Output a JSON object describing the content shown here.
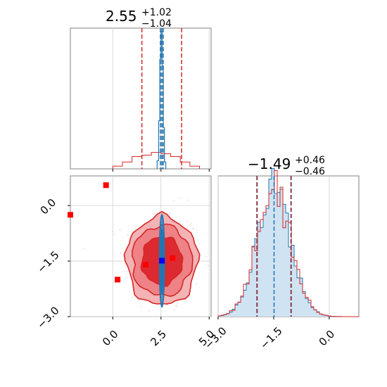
{
  "chart_data": [
    {
      "type": "histogram",
      "panel": "top-left",
      "title": {
        "main": "2.55",
        "sup": "+1.02",
        "sub": "−1.04"
      },
      "xlim": [
        -2.2,
        5.1
      ],
      "xticks": [
        0.0,
        2.5,
        5.0
      ],
      "grid": true,
      "narrow_series": {
        "name": "",
        "color": "#1f77b4",
        "bins": [
          [
            2.3,
            2.38,
            0.06
          ],
          [
            2.38,
            2.44,
            0.35
          ],
          [
            2.44,
            2.5,
            0.8
          ],
          [
            2.5,
            2.56,
            1.0
          ],
          [
            2.56,
            2.62,
            0.75
          ],
          [
            2.62,
            2.68,
            0.3
          ],
          [
            2.68,
            2.75,
            0.05
          ]
        ],
        "quantile_lines": [
          2.47,
          2.55,
          2.62
        ]
      },
      "wide_series": {
        "name": "",
        "color": "#d62728",
        "bins": [
          [
            0.0,
            0.5,
            0.02
          ],
          [
            0.5,
            1.0,
            0.05
          ],
          [
            1.0,
            1.5,
            0.09
          ],
          [
            1.5,
            2.0,
            0.1
          ],
          [
            2.0,
            2.5,
            0.12
          ],
          [
            2.5,
            3.0,
            0.11
          ],
          [
            3.0,
            3.5,
            0.09
          ],
          [
            3.5,
            4.0,
            0.05
          ],
          [
            4.0,
            4.5,
            0.02
          ]
        ],
        "quantile_lines": [
          1.51,
          2.55,
          3.57
        ]
      }
    },
    {
      "type": "scatter_contour",
      "panel": "bottom-left",
      "xlim": [
        -2.2,
        5.1
      ],
      "ylim": [
        -3.0,
        0.8
      ],
      "xticks": [
        0.0,
        2.5,
        5.0
      ],
      "yticks": [
        -3.0,
        -1.5,
        0.0
      ],
      "grid": true,
      "contour_levels": [
        {
          "rx": 1.85,
          "ry": 1.2,
          "fill": "#f4b3b5"
        },
        {
          "rx": 1.55,
          "ry": 0.95,
          "fill": "#ee8286"
        },
        {
          "rx": 1.05,
          "ry": 0.65,
          "fill": "#dc2a30"
        }
      ],
      "contour_center": [
        2.55,
        -1.49
      ],
      "narrow_contour": {
        "cx": 2.55,
        "cy": -1.49,
        "rx": 0.12,
        "ry": 1.25,
        "color": "#1f77b4"
      },
      "center_marker": {
        "x": 2.55,
        "y": -1.49,
        "color": "#0000ff"
      },
      "red_markers": [
        {
          "x": -2.2,
          "y": -0.25
        },
        {
          "x": -0.35,
          "y": 0.55
        },
        {
          "x": 0.25,
          "y": -2.0
        },
        {
          "x": 1.7,
          "y": -1.6
        },
        {
          "x": 3.1,
          "y": -1.42
        }
      ],
      "marker_color": "#ff0000"
    },
    {
      "type": "histogram",
      "panel": "bottom-right",
      "title": {
        "main": "−1.49",
        "sup": "+0.46",
        "sub": "−0.46"
      },
      "xlim": [
        -3.0,
        0.8
      ],
      "xticks": [
        -3.0,
        -1.5,
        0.0
      ],
      "grid": true,
      "blue_series": {
        "name": "",
        "color": "#1f77b4",
        "fill": "#cfe3f2",
        "quantile_lines": [
          -1.95,
          -1.49,
          -1.03
        ]
      },
      "red_series": {
        "name": "",
        "color": "#d62728",
        "quantile_lines": [
          -1.95,
          -1.03
        ]
      },
      "density": {
        "center": -1.49,
        "sigma": 0.46
      }
    }
  ]
}
